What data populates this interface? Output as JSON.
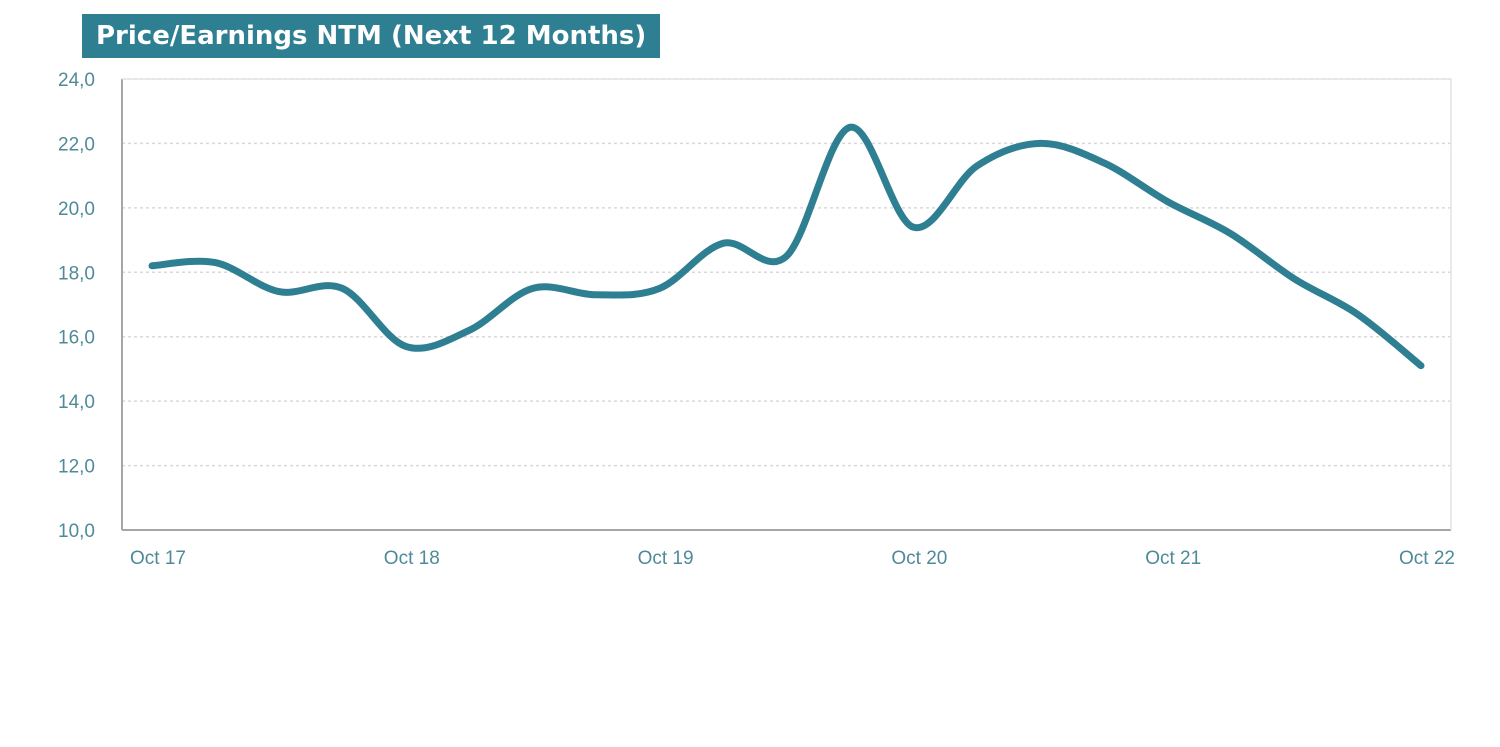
{
  "title": "Price/Earnings NTM (Next 12 Months)",
  "colors": {
    "line": "#2f7f93",
    "title_background": "#2f7f93",
    "title_text": "#ffffff",
    "gridline": "#d9d9d9",
    "axis": "#a6a6a6",
    "tick_label": "#4f8a99"
  },
  "chart_data": {
    "type": "line",
    "title": "Price/Earnings NTM (Next 12 Months)",
    "xlabel": "",
    "ylabel": "",
    "ylim": [
      10,
      24
    ],
    "xlim": [
      "2017-10",
      "2022-10"
    ],
    "grid": true,
    "legend": "none",
    "y_ticks": [
      "10,0",
      "12,0",
      "14,0",
      "16,0",
      "18,0",
      "20,0",
      "22,0",
      "24,0"
    ],
    "x_ticks": [
      {
        "x": "2017-10",
        "label": "Oct 17"
      },
      {
        "x": "2018-10",
        "label": "Oct 18"
      },
      {
        "x": "2019-10",
        "label": "Oct 19"
      },
      {
        "x": "2020-10",
        "label": "Oct 20"
      },
      {
        "x": "2021-10",
        "label": "Oct 21"
      },
      {
        "x": "2022-10",
        "label": "Oct 22"
      }
    ],
    "series": [
      {
        "points": [
          {
            "x": "2017-10",
            "y": 18.2
          },
          {
            "x": "2018-01",
            "y": 18.3
          },
          {
            "x": "2018-04",
            "y": 17.4
          },
          {
            "x": "2018-07",
            "y": 17.5
          },
          {
            "x": "2018-10",
            "y": 15.7
          },
          {
            "x": "2019-01",
            "y": 16.2
          },
          {
            "x": "2019-04",
            "y": 17.5
          },
          {
            "x": "2019-07",
            "y": 17.3
          },
          {
            "x": "2019-10",
            "y": 17.5
          },
          {
            "x": "2020-01",
            "y": 18.9
          },
          {
            "x": "2020-04",
            "y": 18.5
          },
          {
            "x": "2020-07",
            "y": 22.5
          },
          {
            "x": "2020-10",
            "y": 19.4
          },
          {
            "x": "2021-01",
            "y": 21.3
          },
          {
            "x": "2021-04",
            "y": 22.0
          },
          {
            "x": "2021-07",
            "y": 21.4
          },
          {
            "x": "2021-10",
            "y": 20.2
          },
          {
            "x": "2022-01",
            "y": 19.2
          },
          {
            "x": "2022-04",
            "y": 17.8
          },
          {
            "x": "2022-07",
            "y": 16.7
          },
          {
            "x": "2022-10",
            "y": 15.1
          }
        ]
      }
    ]
  }
}
